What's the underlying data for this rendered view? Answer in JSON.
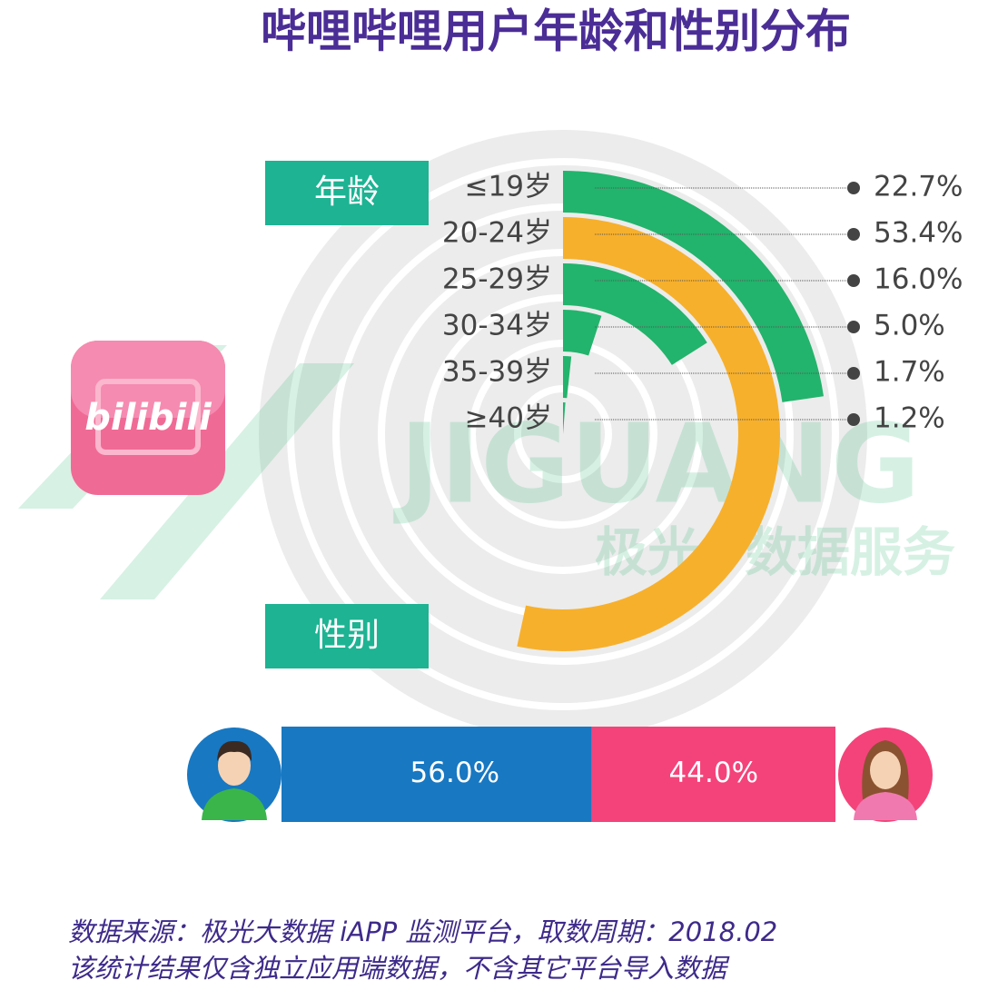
{
  "title": "哔哩哔哩用户年龄和性别分布",
  "logo": "bilibili",
  "watermark": [
    "JIGUANG",
    "极光",
    "数据服务"
  ],
  "chart_data": [
    {
      "type": "radial-bar",
      "label": "年龄",
      "categories": [
        "≤19岁",
        "20-24岁",
        "25-29岁",
        "30-34岁",
        "35-39岁",
        "≥40岁"
      ],
      "values": [
        22.7,
        53.4,
        16.0,
        5.0,
        1.7,
        1.2
      ],
      "value_labels": [
        "22.7%",
        "53.4%",
        "16.0%",
        "5.0%",
        "1.7%",
        "1.2%"
      ],
      "colors": [
        "#22b46c",
        "#f7b02c",
        "#22b46c",
        "#22b46c",
        "#22b46c",
        "#22b46c"
      ]
    },
    {
      "type": "stacked-bar",
      "label": "性别",
      "values": [
        56.0,
        44.0
      ],
      "value_labels": [
        "56.0%",
        "44.0%"
      ],
      "colors": [
        "#1878c2",
        "#f4437a"
      ]
    }
  ],
  "notes": [
    "数据来源：极光大数据 iAPP 监测平台，取数周期：2018.02",
    "该统计结果仅含独立应用端数据，不含其它平台导入数据"
  ]
}
